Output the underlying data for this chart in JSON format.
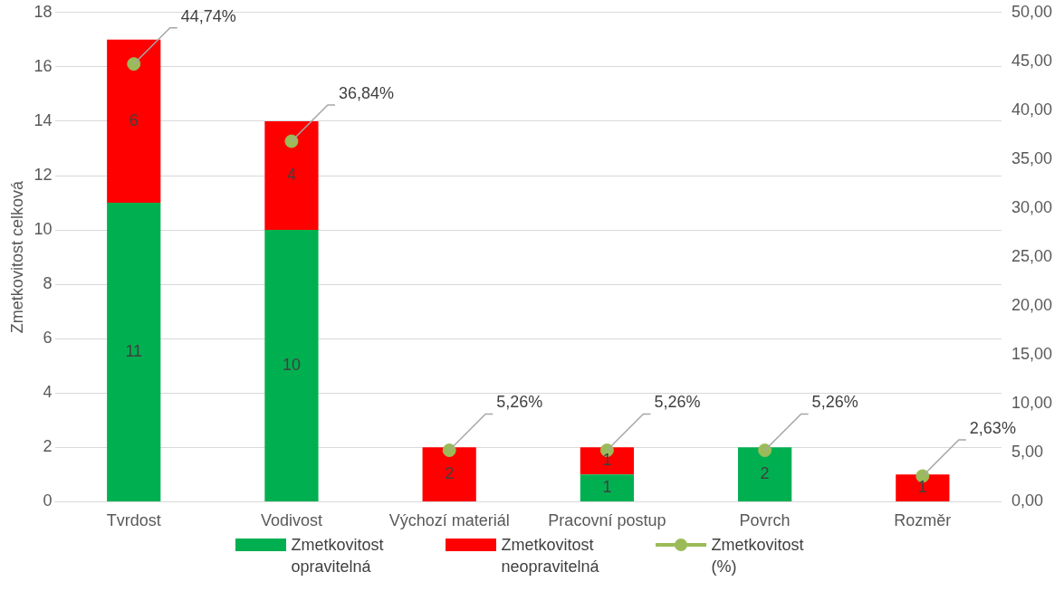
{
  "chart_data": {
    "type": "bar",
    "stacked": true,
    "categories": [
      "Tvrdost",
      "Vodivost",
      "Výchozí materiál",
      "Pracovní postup",
      "Povrch",
      "Rozměr"
    ],
    "ylabel": "Zmetkovitost celková",
    "ylim": [
      0,
      18
    ],
    "yticks": [
      0,
      2,
      4,
      6,
      8,
      10,
      12,
      14,
      16,
      18
    ],
    "y2lim": [
      0,
      50
    ],
    "y2ticks": [
      {
        "value": 0,
        "label": "0,00"
      },
      {
        "value": 5,
        "label": "5,00"
      },
      {
        "value": 10,
        "label": "10,00"
      },
      {
        "value": 15,
        "label": "15,00"
      },
      {
        "value": 20,
        "label": "20,00"
      },
      {
        "value": 25,
        "label": "25,00"
      },
      {
        "value": 30,
        "label": "30,00"
      },
      {
        "value": 35,
        "label": "35,00"
      },
      {
        "value": 40,
        "label": "40,00"
      },
      {
        "value": 45,
        "label": "45,00"
      },
      {
        "value": 50,
        "label": "50,00"
      }
    ],
    "grid": "y",
    "legend": "bottom",
    "series": [
      {
        "name": "Zmetkovitost opravitelná",
        "color": "#00b050",
        "values": [
          11,
          10,
          0,
          1,
          2,
          0
        ],
        "value_labels": [
          "11",
          "10",
          null,
          "1",
          "2",
          null
        ]
      },
      {
        "name": "Zmetkovitost neopravitelná",
        "color": "#ff0000",
        "values": [
          6,
          4,
          2,
          1,
          0,
          1
        ],
        "value_labels": [
          "6",
          "4",
          "2",
          "1",
          null,
          "1"
        ]
      },
      {
        "name": "Zmetkovitost (%)",
        "type": "scatter",
        "axis": "y2",
        "color": "#9bbb59",
        "marker": "circle",
        "values": [
          44.74,
          36.84,
          5.26,
          5.26,
          5.26,
          2.63
        ],
        "value_labels": [
          "44,74%",
          "36,84%",
          "5,26%",
          "5,26%",
          "5,26%",
          "2,63%"
        ]
      }
    ]
  }
}
